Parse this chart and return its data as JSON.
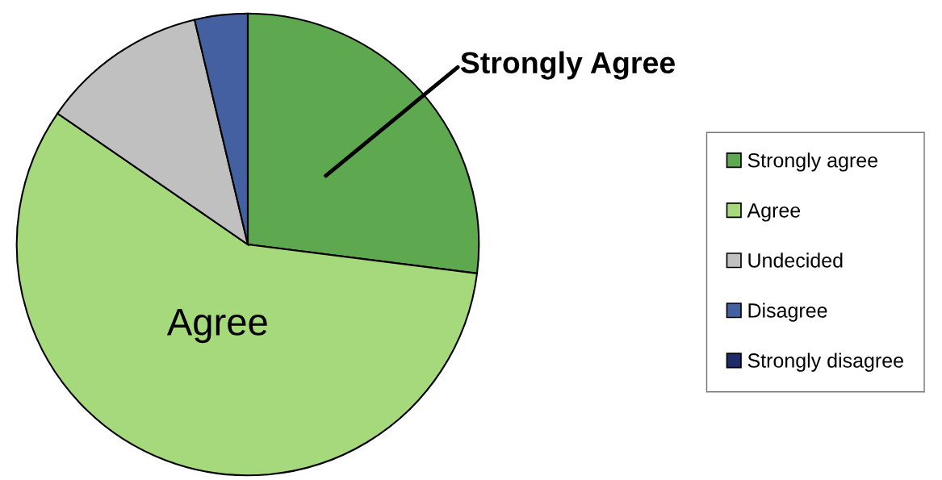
{
  "chart_data": {
    "type": "pie",
    "categories": [
      "Strongly agree",
      "Agree",
      "Undecided",
      "Disagree",
      "Strongly disagree"
    ],
    "values": [
      27,
      57.6,
      11.7,
      3.7,
      0
    ],
    "colors": [
      "#5ea84f",
      "#a6d97c",
      "#c0c0c0",
      "#4460a0",
      "#1f2a6b"
    ],
    "annotations": [
      "Strongly Agree",
      "Agree"
    ],
    "legend": "right"
  }
}
